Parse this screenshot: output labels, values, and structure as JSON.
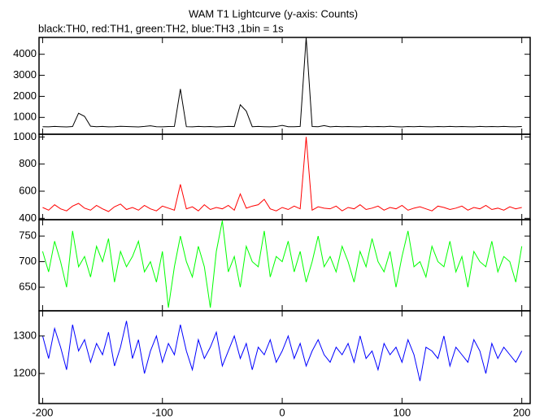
{
  "chart_data": {
    "title": "WAM T1 Lightcurve (y-axis: Counts)",
    "subtitle": "black:TH0, red:TH1, green:TH2, blue:TH3 ,1bin = 1s",
    "xlim": [
      -203,
      207
    ],
    "xticks": [
      -200,
      -100,
      0,
      100,
      200
    ],
    "x": [
      -200,
      -195,
      -190,
      -185,
      -180,
      -175,
      -170,
      -165,
      -160,
      -155,
      -150,
      -145,
      -140,
      -135,
      -130,
      -125,
      -120,
      -115,
      -110,
      -105,
      -100,
      -95,
      -90,
      -85,
      -80,
      -75,
      -70,
      -65,
      -60,
      -55,
      -50,
      -45,
      -40,
      -35,
      -30,
      -25,
      -20,
      -15,
      -10,
      -5,
      0,
      5,
      10,
      15,
      20,
      25,
      30,
      35,
      40,
      45,
      50,
      55,
      60,
      65,
      70,
      75,
      80,
      85,
      90,
      95,
      100,
      105,
      110,
      115,
      120,
      125,
      130,
      135,
      140,
      145,
      150,
      155,
      160,
      165,
      170,
      175,
      180,
      185,
      190,
      195,
      200
    ],
    "panels": [
      {
        "type": "line",
        "ylim": [
          200,
          4800
        ],
        "yticks": [
          1000,
          2000,
          3000,
          4000
        ],
        "series": [
          {
            "color": "#000000",
            "values": [
              560,
              555,
              570,
              560,
              550,
              565,
              1200,
              1050,
              580,
              560,
              570,
              555,
              560,
              575,
              565,
              560,
              550,
              570,
              600,
              560,
              555,
              565,
              570,
              2350,
              560,
              555,
              570,
              560,
              565,
              550,
              560,
              570,
              565,
              1600,
              1300,
              560,
              570,
              560,
              555,
              565,
              620,
              560,
              560,
              570,
              4800,
              565,
              560,
              610,
              555,
              570,
              560,
              565,
              560,
              555,
              570,
              560,
              565,
              560,
              575,
              560,
              550,
              565,
              560,
              570,
              560,
              555,
              565,
              560,
              570,
              560,
              565,
              560,
              555,
              570,
              560,
              565,
              560,
              570,
              560,
              555,
              565
            ]
          }
        ]
      },
      {
        "type": "line",
        "ylim": [
          390,
          1020
        ],
        "yticks": [
          400,
          600,
          800,
          1000
        ],
        "series": [
          {
            "color": "#ff0000",
            "values": [
              480,
              460,
              500,
              470,
              455,
              490,
              510,
              475,
              460,
              495,
              470,
              450,
              485,
              505,
              465,
              480,
              460,
              495,
              470,
              455,
              490,
              475,
              460,
              650,
              470,
              485,
              455,
              500,
              465,
              480,
              470,
              495,
              460,
              580,
              475,
              490,
              500,
              540,
              470,
              455,
              480,
              465,
              490,
              470,
              1000,
              460,
              485,
              475,
              470,
              490,
              455,
              480,
              470,
              500,
              465,
              475,
              490,
              460,
              480,
              470,
              495,
              460,
              475,
              485,
              470,
              455,
              490,
              480,
              465,
              475,
              490,
              460,
              480,
              470,
              495,
              465,
              475,
              460,
              485,
              470,
              480
            ]
          }
        ]
      },
      {
        "type": "line",
        "ylim": [
          604,
          782
        ],
        "yticks": [
          650,
          700,
          750
        ],
        "series": [
          {
            "color": "#00ff00",
            "values": [
              720,
              680,
              740,
              700,
              650,
              760,
              690,
              710,
              670,
              730,
              700,
              745,
              660,
              720,
              690,
              710,
              740,
              680,
              700,
              660,
              720,
              610,
              690,
              750,
              700,
              670,
              730,
              690,
              610,
              720,
              780,
              680,
              710,
              650,
              730,
              700,
              690,
              760,
              670,
              710,
              700,
              740,
              680,
              720,
              660,
              700,
              750,
              690,
              710,
              680,
              730,
              700,
              660,
              720,
              690,
              745,
              700,
              680,
              720,
              650,
              710,
              760,
              690,
              700,
              670,
              730,
              700,
              690,
              740,
              680,
              710,
              650,
              720,
              700,
              690,
              740,
              680,
              710,
              700,
              660,
              730
            ]
          }
        ]
      },
      {
        "type": "line",
        "ylim": [
          1120,
          1367
        ],
        "yticks": [
          1200,
          1300
        ],
        "series": [
          {
            "color": "#0000ff",
            "values": [
              1300,
              1240,
              1320,
              1270,
              1210,
              1330,
              1260,
              1290,
              1230,
              1280,
              1250,
              1310,
              1220,
              1270,
              1340,
              1240,
              1290,
              1200,
              1260,
              1300,
              1230,
              1280,
              1250,
              1330,
              1260,
              1210,
              1290,
              1240,
              1270,
              1310,
              1220,
              1260,
              1300,
              1240,
              1280,
              1210,
              1270,
              1250,
              1290,
              1230,
              1260,
              1300,
              1240,
              1280,
              1220,
              1260,
              1290,
              1250,
              1230,
              1270,
              1250,
              1280,
              1230,
              1300,
              1240,
              1260,
              1210,
              1280,
              1250,
              1270,
              1230,
              1290,
              1250,
              1180,
              1270,
              1260,
              1240,
              1300,
              1220,
              1270,
              1250,
              1230,
              1290,
              1260,
              1200,
              1280,
              1240,
              1270,
              1250,
              1230,
              1260
            ]
          }
        ]
      }
    ]
  }
}
